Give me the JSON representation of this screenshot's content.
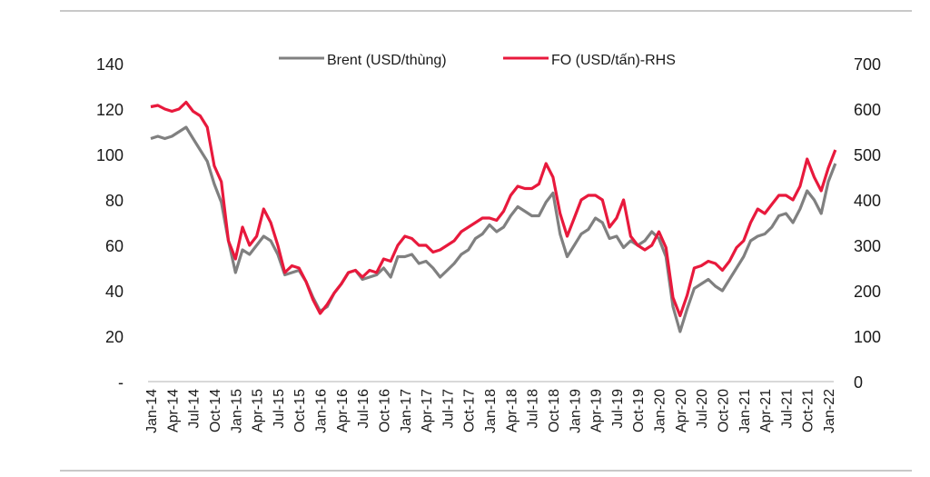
{
  "chart_data": {
    "type": "line",
    "title": "",
    "xlabel": "",
    "ylabel": "",
    "ylabel_right": "",
    "grid": false,
    "legend_position": "top-center",
    "ylim": [
      0,
      140
    ],
    "ylim_right": [
      0,
      700
    ],
    "y_ticks": [
      "-",
      "20",
      "40",
      "60",
      "80",
      "100",
      "120",
      "140"
    ],
    "y_ticks_right": [
      "0",
      "100",
      "200",
      "300",
      "400",
      "500",
      "600",
      "700"
    ],
    "x_tick_labels": [
      "Jan-14",
      "Apr-14",
      "Jul-14",
      "Oct-14",
      "Jan-15",
      "Apr-15",
      "Jul-15",
      "Oct-15",
      "Jan-16",
      "Apr-16",
      "Jul-16",
      "Oct-16",
      "Jan-17",
      "Apr-17",
      "Jul-17",
      "Oct-17",
      "Jan-18",
      "Apr-18",
      "Jul-18",
      "Oct-18",
      "Jan-19",
      "Apr-19",
      "Jul-19",
      "Oct-19",
      "Jan-20",
      "Apr-20",
      "Jul-20",
      "Oct-20",
      "Jan-21",
      "Apr-21",
      "Jul-21",
      "Oct-21",
      "Jan-22"
    ],
    "x_start": "Jan-14",
    "x_step_months": 1,
    "series": [
      {
        "name": "Brent (USD/thùng)",
        "axis": "left",
        "color": "#808080",
        "values": [
          107,
          108,
          107,
          108,
          110,
          112,
          107,
          102,
          97,
          87,
          79,
          62,
          48,
          58,
          56,
          60,
          64,
          62,
          56,
          47,
          48,
          49,
          44,
          37,
          31,
          33,
          39,
          43,
          48,
          49,
          45,
          46,
          47,
          50,
          46,
          55,
          55,
          56,
          52,
          53,
          50,
          46,
          49,
          52,
          56,
          58,
          63,
          65,
          69,
          66,
          68,
          73,
          77,
          75,
          73,
          73,
          79,
          83,
          65,
          55,
          60,
          65,
          67,
          72,
          70,
          63,
          64,
          59,
          62,
          60,
          62,
          66,
          63,
          55,
          33,
          22,
          32,
          41,
          43,
          45,
          42,
          40,
          45,
          50,
          55,
          62,
          64,
          65,
          68,
          73,
          74,
          70,
          76,
          84,
          80,
          74,
          88,
          96
        ]
      },
      {
        "name": "FO (USD/tấn)-RHS",
        "axis": "right",
        "color": "#e8193c",
        "values": [
          605,
          608,
          600,
          595,
          600,
          615,
          595,
          585,
          560,
          475,
          440,
          310,
          270,
          340,
          300,
          320,
          380,
          350,
          300,
          240,
          255,
          250,
          220,
          180,
          150,
          170,
          195,
          215,
          240,
          245,
          230,
          245,
          240,
          270,
          265,
          300,
          320,
          315,
          300,
          300,
          285,
          290,
          300,
          310,
          330,
          340,
          350,
          360,
          360,
          355,
          375,
          410,
          430,
          425,
          425,
          435,
          480,
          450,
          370,
          320,
          360,
          400,
          410,
          410,
          400,
          340,
          360,
          400,
          320,
          300,
          290,
          300,
          330,
          295,
          185,
          145,
          190,
          250,
          255,
          265,
          260,
          245,
          265,
          295,
          310,
          350,
          380,
          370,
          390,
          410,
          410,
          400,
          430,
          490,
          450,
          420,
          470,
          510
        ]
      }
    ]
  }
}
